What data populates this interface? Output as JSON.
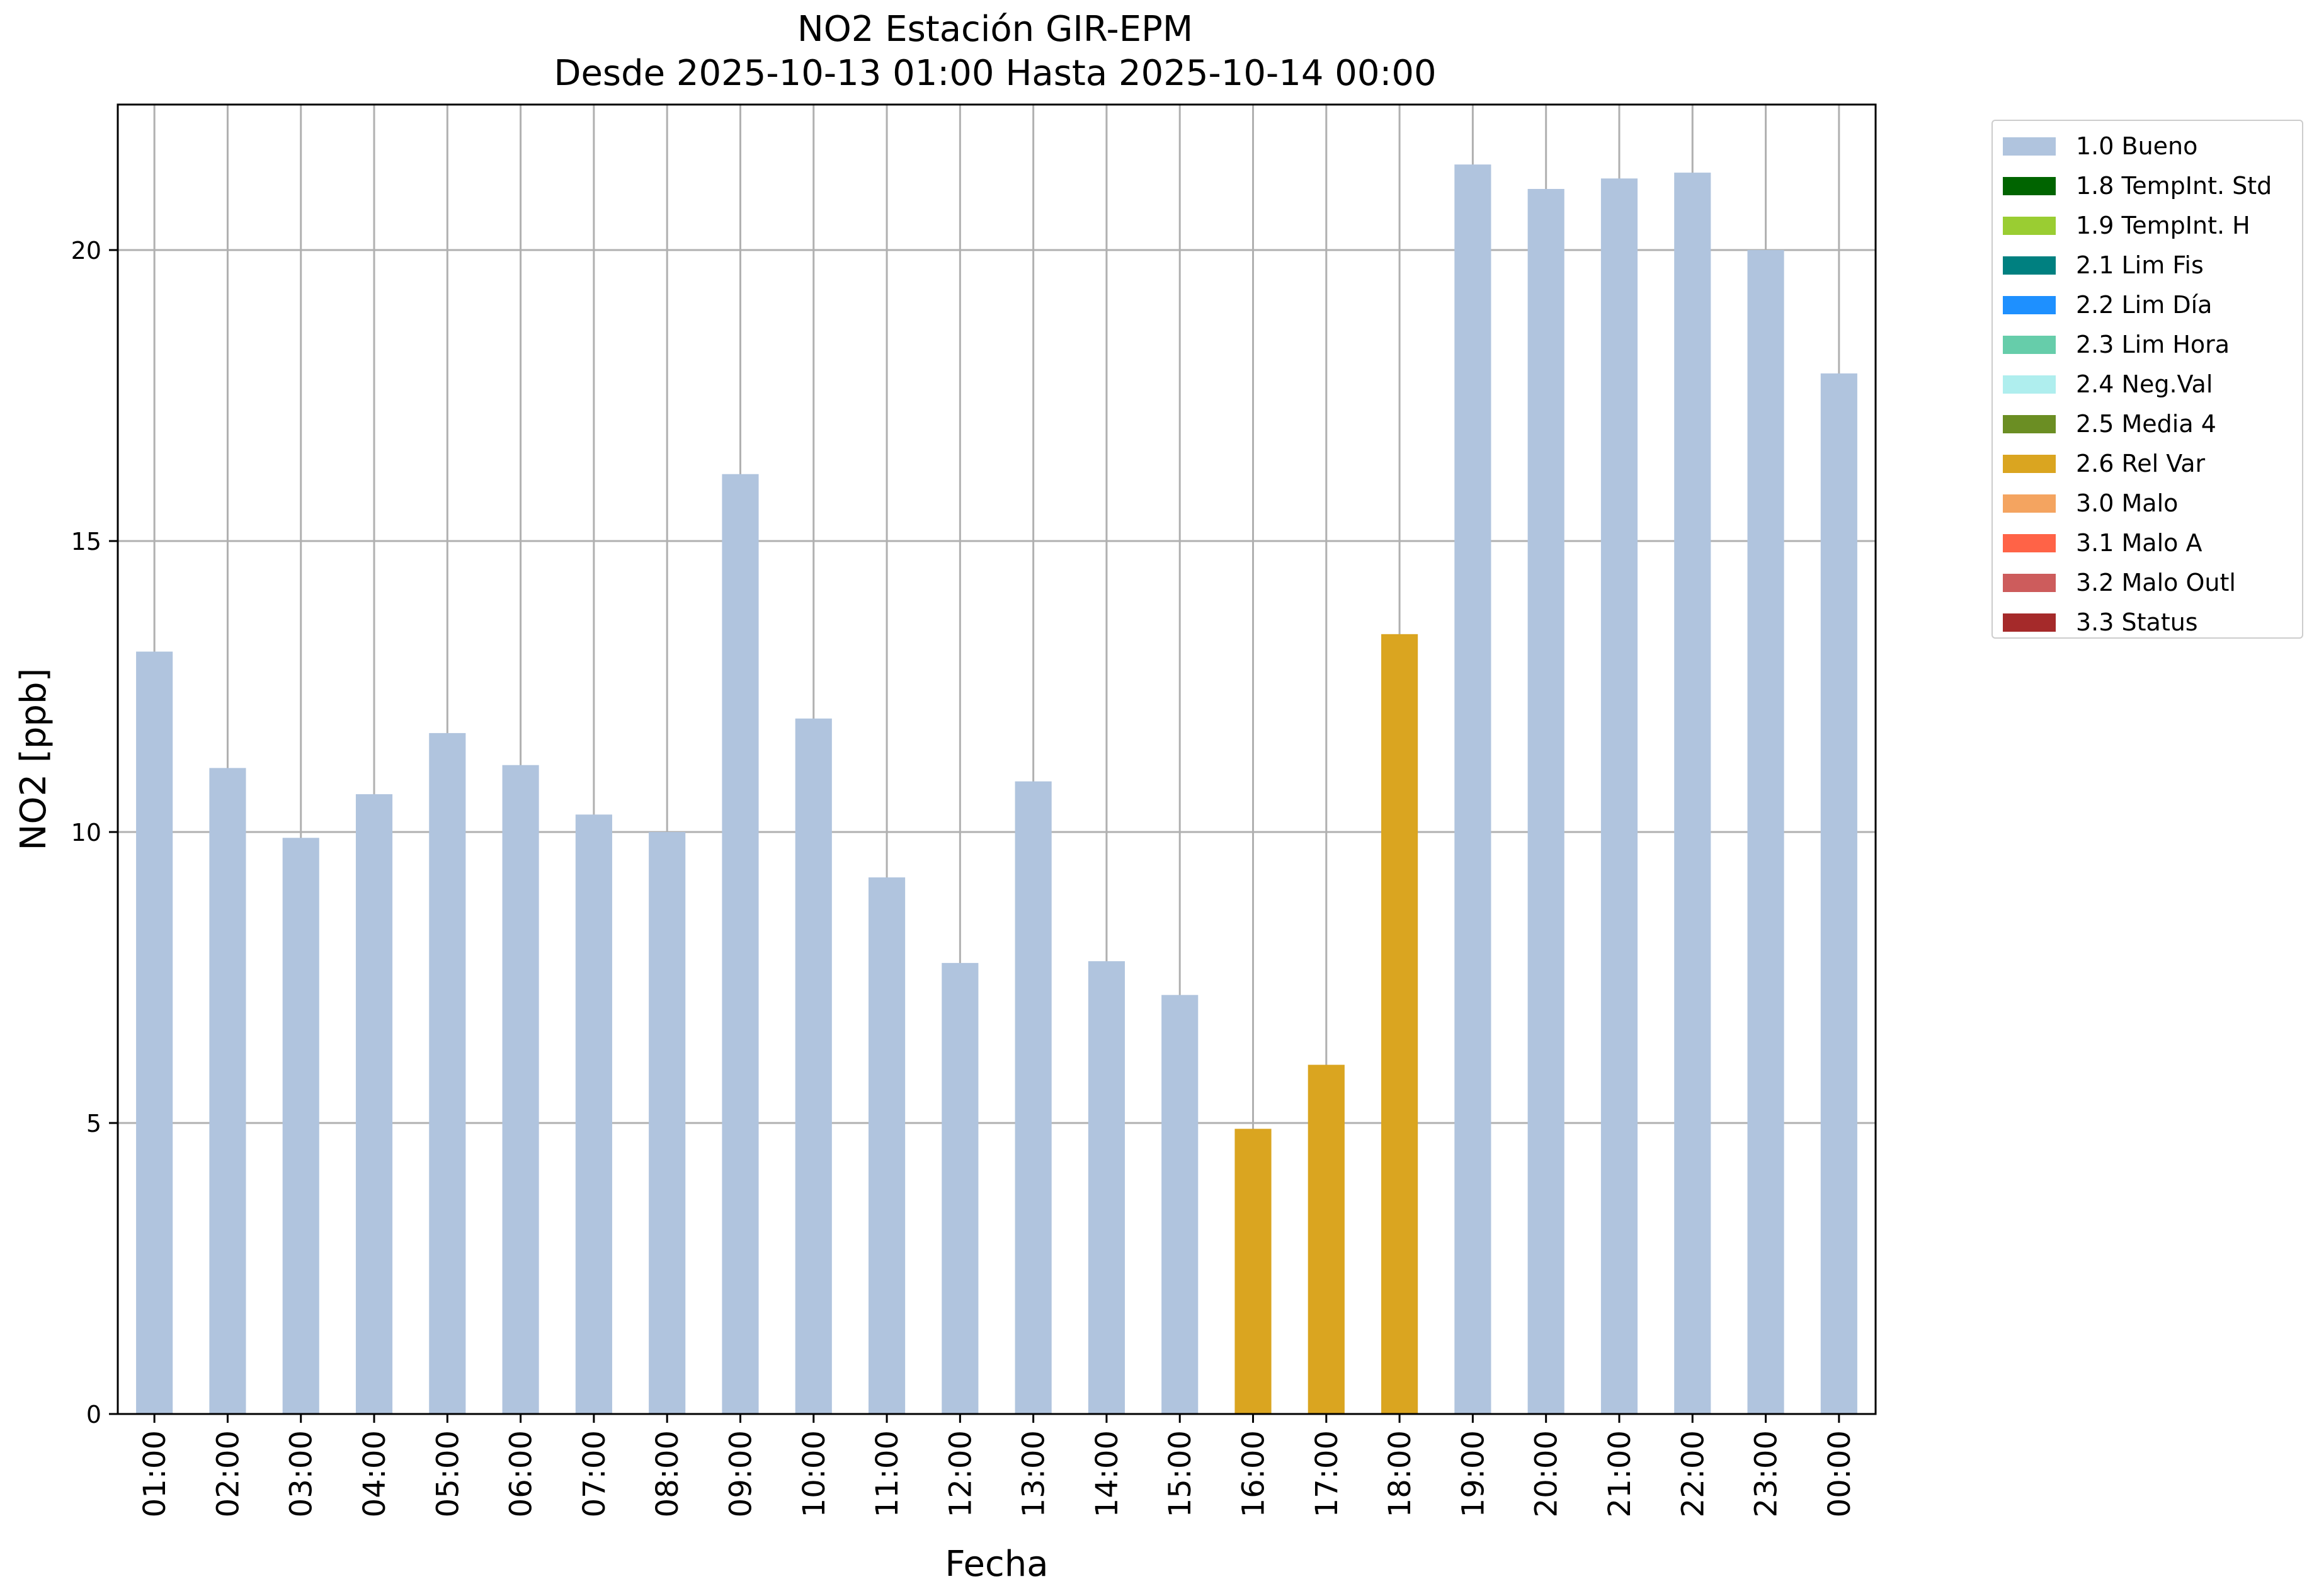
{
  "title": "NO2 Estación GIR-EPM",
  "subtitle": "Desde 2025-10-13 01:00 Hasta 2025-10-14 00:00",
  "legend": {
    "items": [
      {
        "label": "1.0 Bueno",
        "color": "#b0c4de"
      },
      {
        "label": "1.8 TempInt. Std",
        "color": "#006400"
      },
      {
        "label": "1.9 TempInt. H",
        "color": "#9acd32"
      },
      {
        "label": "2.1 Lim Fis",
        "color": "#008080"
      },
      {
        "label": "2.2 Lim Día",
        "color": "#1e90ff"
      },
      {
        "label": "2.3 Lim Hora",
        "color": "#66cdaa"
      },
      {
        "label": "2.4 Neg.Val",
        "color": "#afeeee"
      },
      {
        "label": "2.5 Media 4",
        "color": "#6b8e23"
      },
      {
        "label": "2.6 Rel Var",
        "color": "#daa520"
      },
      {
        "label": "3.0 Malo",
        "color": "#f4a460"
      },
      {
        "label": "3.1 Malo A",
        "color": "#ff6347"
      },
      {
        "label": "3.2 Malo Outl",
        "color": "#cd5c5c"
      },
      {
        "label": "3.3 Status",
        "color": "#a52a2a"
      }
    ]
  },
  "chart_data": {
    "type": "bar",
    "title": "NO2 Estación GIR-EPM",
    "subtitle": "Desde 2025-10-13 01:00 Hasta 2025-10-14 00:00",
    "xlabel": "Fecha",
    "ylabel": "NO2 [ppb]",
    "ylim": [
      0,
      22.5
    ],
    "yticks": [
      0,
      5,
      10,
      15,
      20
    ],
    "grid": true,
    "legend_position": "outside-top-right",
    "categories": [
      "01:00",
      "02:00",
      "03:00",
      "04:00",
      "05:00",
      "06:00",
      "07:00",
      "08:00",
      "09:00",
      "10:00",
      "11:00",
      "12:00",
      "13:00",
      "14:00",
      "15:00",
      "16:00",
      "17:00",
      "18:00",
      "19:00",
      "20:00",
      "21:00",
      "22:00",
      "23:00",
      "00:00"
    ],
    "values": [
      13.1,
      11.1,
      9.9,
      10.65,
      11.7,
      11.15,
      10.3,
      10.0,
      16.15,
      11.95,
      9.22,
      7.75,
      10.87,
      7.78,
      7.2,
      4.9,
      6.0,
      13.4,
      21.47,
      21.05,
      21.23,
      21.33,
      20.0,
      17.88
    ],
    "flags": [
      "1.0 Bueno",
      "1.0 Bueno",
      "1.0 Bueno",
      "1.0 Bueno",
      "1.0 Bueno",
      "1.0 Bueno",
      "1.0 Bueno",
      "1.0 Bueno",
      "1.0 Bueno",
      "1.0 Bueno",
      "1.0 Bueno",
      "1.0 Bueno",
      "1.0 Bueno",
      "1.0 Bueno",
      "1.0 Bueno",
      "2.6 Rel Var",
      "2.6 Rel Var",
      "2.6 Rel Var",
      "1.0 Bueno",
      "1.0 Bueno",
      "1.0 Bueno",
      "1.0 Bueno",
      "1.0 Bueno",
      "1.0 Bueno"
    ],
    "colors": {
      "1.0 Bueno": "#b0c4de",
      "2.6 Rel Var": "#daa520"
    },
    "grid_color": "#b0b0b0"
  }
}
